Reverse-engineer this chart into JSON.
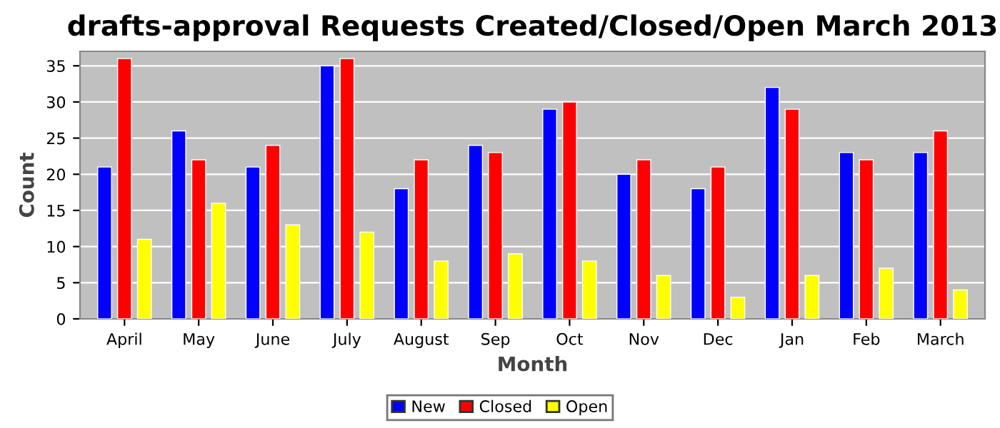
{
  "chart_data": {
    "type": "bar",
    "title": "drafts-approval Requests Created/Closed/Open March 2013",
    "xlabel": "Month",
    "ylabel": "Count",
    "categories": [
      "April",
      "May",
      "June",
      "July",
      "August",
      "Sep",
      "Oct",
      "Nov",
      "Dec",
      "Jan",
      "Feb",
      "March"
    ],
    "series": [
      {
        "name": "New",
        "color": "#0000ff",
        "values": [
          21,
          26,
          21,
          35,
          18,
          24,
          29,
          20,
          18,
          32,
          23,
          23
        ]
      },
      {
        "name": "Closed",
        "color": "#ff0000",
        "values": [
          36,
          22,
          24,
          36,
          22,
          23,
          30,
          22,
          21,
          29,
          22,
          26
        ]
      },
      {
        "name": "Open",
        "color": "#ffff00",
        "values": [
          11,
          16,
          13,
          12,
          8,
          9,
          8,
          6,
          3,
          6,
          7,
          4
        ]
      }
    ],
    "ylim": [
      0,
      37
    ],
    "yticks": [
      0,
      5,
      10,
      15,
      20,
      25,
      30,
      35
    ],
    "grid": "y",
    "legend": "bottom"
  }
}
